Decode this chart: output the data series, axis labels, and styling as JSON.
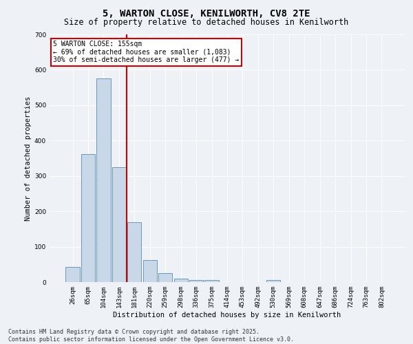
{
  "title_line1": "5, WARTON CLOSE, KENILWORTH, CV8 2TE",
  "title_line2": "Size of property relative to detached houses in Kenilworth",
  "xlabel": "Distribution of detached houses by size in Kenilworth",
  "ylabel": "Number of detached properties",
  "categories": [
    "26sqm",
    "65sqm",
    "104sqm",
    "143sqm",
    "181sqm",
    "220sqm",
    "259sqm",
    "298sqm",
    "336sqm",
    "375sqm",
    "414sqm",
    "453sqm",
    "492sqm",
    "530sqm",
    "569sqm",
    "608sqm",
    "647sqm",
    "686sqm",
    "724sqm",
    "763sqm",
    "802sqm"
  ],
  "values": [
    42,
    362,
    575,
    325,
    170,
    63,
    25,
    10,
    6,
    5,
    0,
    0,
    0,
    5,
    0,
    0,
    0,
    0,
    0,
    0,
    0
  ],
  "bar_color": "#c8d8e8",
  "bar_edge_color": "#5a8ab0",
  "red_line_x": 3.5,
  "red_line_color": "#cc0000",
  "annotation_text": "5 WARTON CLOSE: 155sqm\n← 69% of detached houses are smaller (1,083)\n30% of semi-detached houses are larger (477) →",
  "annotation_box_color": "#ffffff",
  "annotation_box_edge_color": "#cc0000",
  "ylim": [
    0,
    700
  ],
  "yticks": [
    0,
    100,
    200,
    300,
    400,
    500,
    600,
    700
  ],
  "background_color": "#eef2f7",
  "grid_color": "#ffffff",
  "footer_line1": "Contains HM Land Registry data © Crown copyright and database right 2025.",
  "footer_line2": "Contains public sector information licensed under the Open Government Licence v3.0.",
  "title_fontsize": 10,
  "subtitle_fontsize": 8.5,
  "axis_label_fontsize": 7.5,
  "tick_fontsize": 6.5,
  "annotation_fontsize": 7,
  "footer_fontsize": 6
}
